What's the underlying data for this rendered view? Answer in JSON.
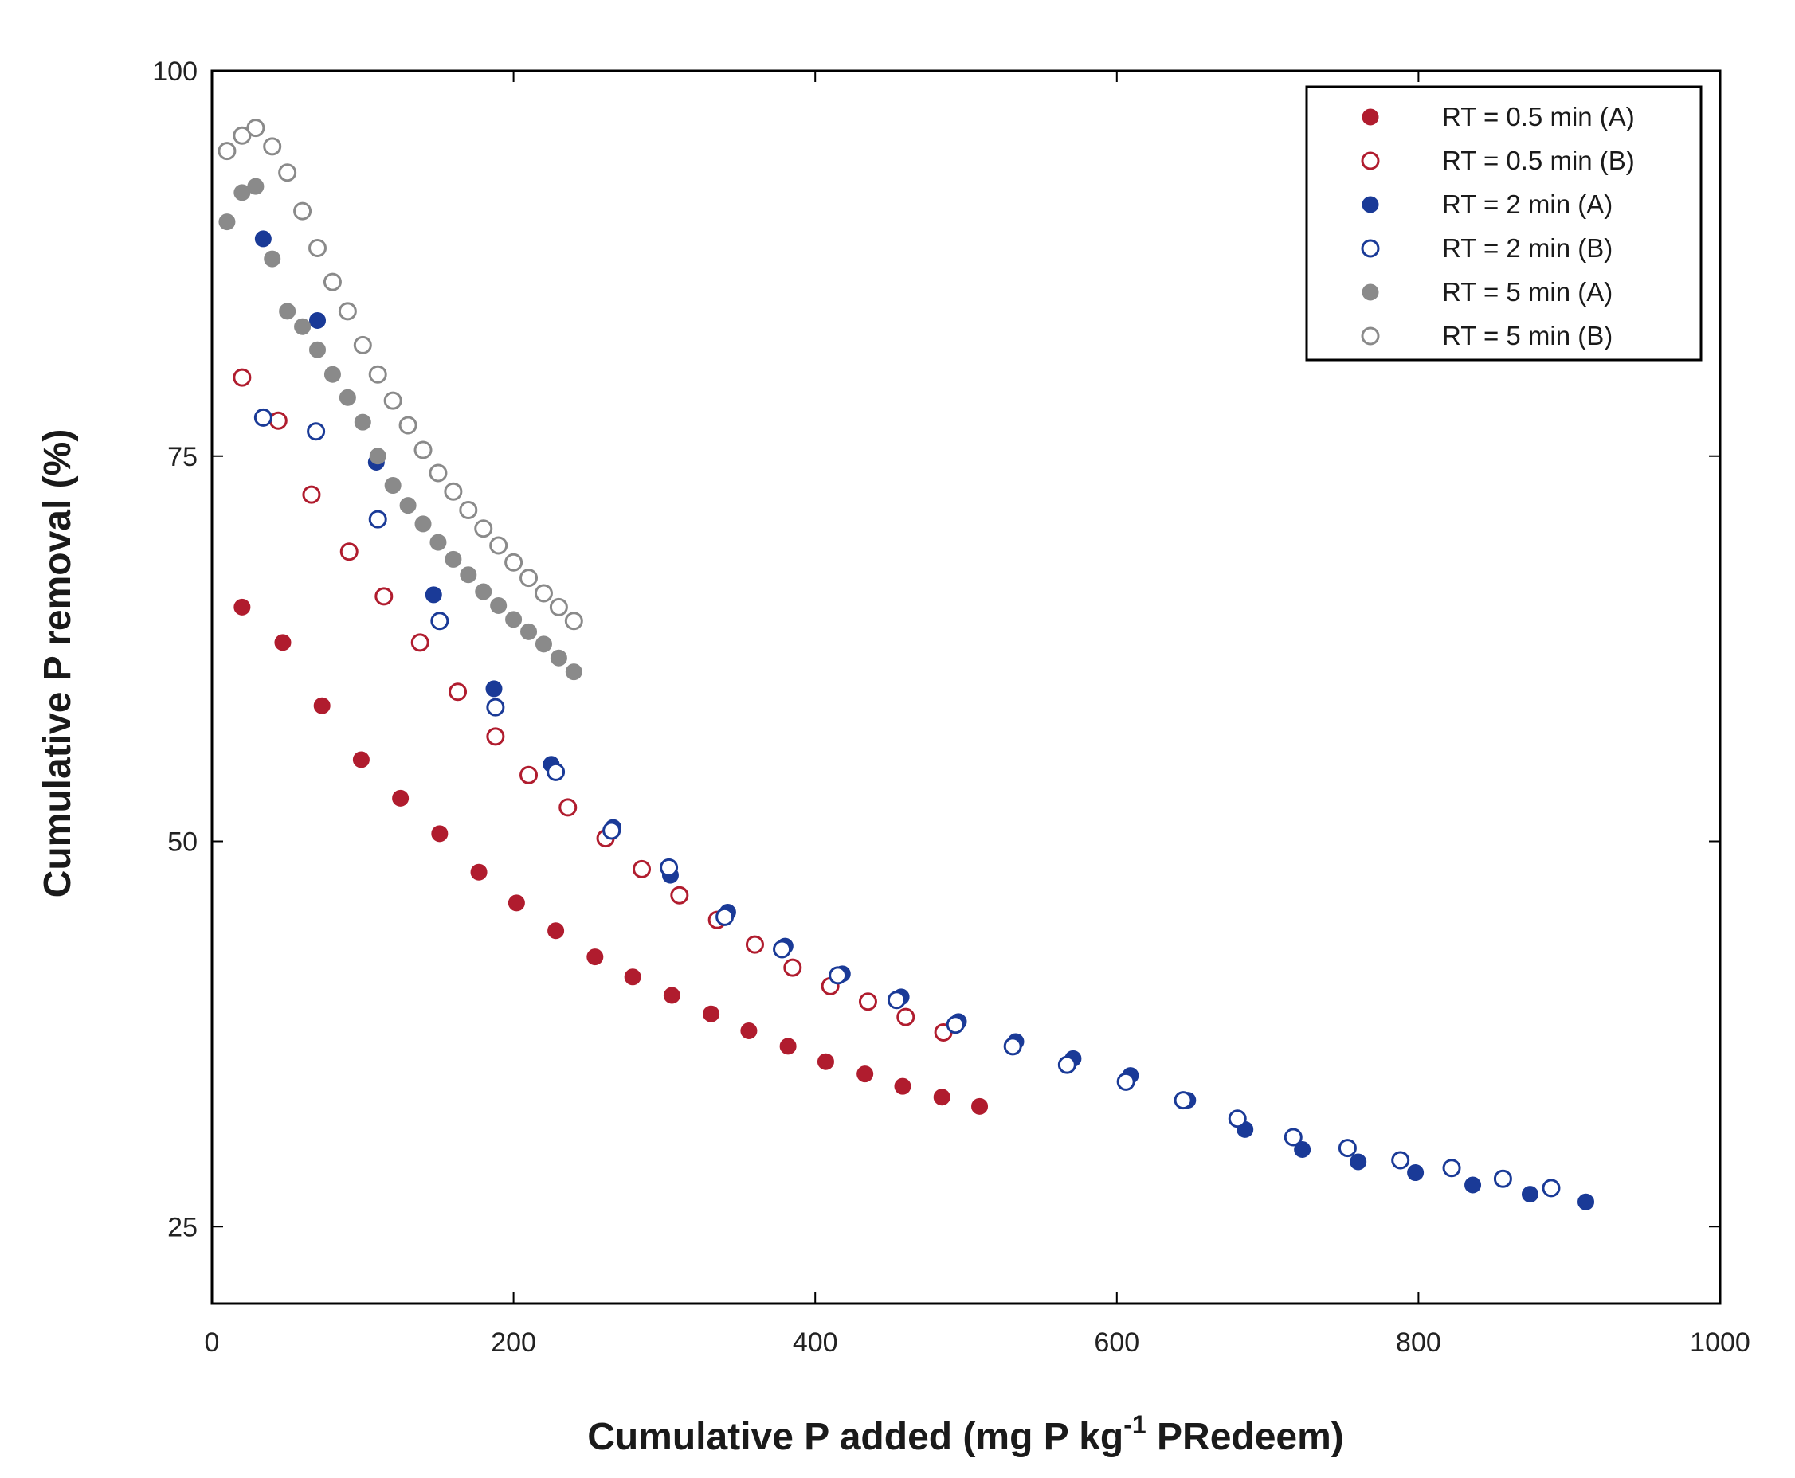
{
  "chart_data": {
    "type": "scatter",
    "title": "",
    "xlabel": {
      "main": "Cumulative P added (mg P kg",
      "sup": "-1",
      "tail": " PRedeem)"
    },
    "ylabel": "Cumulative P removal (%)",
    "xlim": [
      0,
      1000
    ],
    "ylim": [
      20,
      100
    ],
    "xticks": [
      0,
      200,
      400,
      600,
      800,
      1000
    ],
    "yticks": [
      25,
      50,
      75,
      100
    ],
    "grid": false,
    "legend_position": "top-right",
    "series": [
      {
        "name": "RT = 0.5 min (A)",
        "color": "#b01c2e",
        "filled": true,
        "x": [
          20,
          47,
          73,
          99,
          125,
          151,
          177,
          202,
          228,
          254,
          279,
          305,
          331,
          356,
          382,
          407,
          433,
          458,
          484,
          509
        ],
        "y": [
          65.2,
          62.9,
          58.8,
          55.3,
          52.8,
          50.5,
          48.0,
          46.0,
          44.2,
          42.5,
          41.2,
          40.0,
          38.8,
          37.7,
          36.7,
          35.7,
          34.9,
          34.1,
          33.4,
          32.8
        ]
      },
      {
        "name": "RT = 0.5 min (B)",
        "color": "#b01c2e",
        "filled": false,
        "x": [
          20,
          44,
          66,
          91,
          114,
          138,
          163,
          188,
          210,
          236,
          261,
          285,
          310,
          335,
          360,
          385,
          410,
          435,
          460,
          485
        ],
        "y": [
          80.1,
          77.3,
          72.5,
          68.8,
          65.9,
          62.9,
          59.7,
          56.8,
          54.3,
          52.2,
          50.2,
          48.2,
          46.5,
          44.9,
          43.3,
          41.8,
          40.6,
          39.6,
          38.6,
          37.6
        ]
      },
      {
        "name": "RT = 2 min (A)",
        "color": "#1a3a97",
        "filled": true,
        "x": [
          34,
          70,
          109,
          147,
          187,
          225,
          266,
          304,
          342,
          380,
          418,
          457,
          495,
          533,
          571,
          609,
          647,
          685,
          723,
          760,
          798,
          836,
          874,
          911
        ],
        "y": [
          89.1,
          83.8,
          74.6,
          66.0,
          59.9,
          55.0,
          50.9,
          47.8,
          45.4,
          43.2,
          41.4,
          39.9,
          38.3,
          37.0,
          35.9,
          34.8,
          33.2,
          31.3,
          30.0,
          29.2,
          28.5,
          27.7,
          27.1,
          26.6
        ]
      },
      {
        "name": "RT = 2 min (B)",
        "color": "#1a3a97",
        "filled": false,
        "x": [
          34,
          69,
          110,
          151,
          188,
          228,
          265,
          303,
          340,
          378,
          415,
          454,
          493,
          531,
          567,
          606,
          644,
          680,
          717,
          753,
          788,
          822,
          856,
          888
        ],
        "y": [
          77.5,
          76.6,
          70.9,
          64.3,
          58.7,
          54.5,
          50.7,
          48.3,
          45.1,
          43.0,
          41.3,
          39.7,
          38.1,
          36.7,
          35.5,
          34.4,
          33.2,
          32.0,
          30.8,
          30.1,
          29.3,
          28.8,
          28.1,
          27.5
        ]
      },
      {
        "name": "RT = 5 min (A)",
        "color": "#8a8a8a",
        "filled": true,
        "x": [
          10,
          20,
          29,
          40,
          50,
          60,
          70,
          80,
          90,
          100,
          110,
          120,
          130,
          140,
          150,
          160,
          170,
          180,
          190,
          200,
          210,
          220,
          230,
          240
        ],
        "y": [
          90.2,
          92.1,
          92.5,
          87.8,
          84.4,
          83.4,
          81.9,
          80.3,
          78.8,
          77.2,
          75.0,
          73.1,
          71.8,
          70.6,
          69.4,
          68.3,
          67.3,
          66.2,
          65.3,
          64.4,
          63.6,
          62.8,
          61.9,
          61.0
        ]
      },
      {
        "name": "RT = 5 min (B)",
        "color": "#8a8a8a",
        "filled": false,
        "x": [
          10,
          20,
          29,
          40,
          50,
          60,
          70,
          80,
          90,
          100,
          110,
          120,
          130,
          140,
          150,
          160,
          170,
          180,
          190,
          200,
          210,
          220,
          230,
          240
        ],
        "y": [
          94.8,
          95.8,
          96.3,
          95.1,
          93.4,
          90.9,
          88.5,
          86.3,
          84.4,
          82.2,
          80.3,
          78.6,
          77.0,
          75.4,
          73.9,
          72.7,
          71.5,
          70.3,
          69.2,
          68.1,
          67.1,
          66.1,
          65.2,
          64.3
        ]
      }
    ]
  }
}
